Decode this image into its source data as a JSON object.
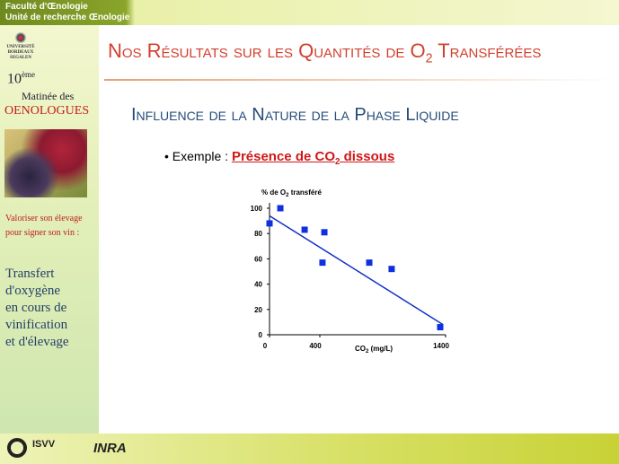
{
  "header": {
    "faculty": "Faculté d'Œnologie",
    "unit": "Unité de recherche Œnologie"
  },
  "sidebar": {
    "university": [
      "UNIVERSITÉ",
      "BORDEAUX",
      "SEGALEN"
    ],
    "edition_number": "10",
    "edition_suffix": "ème",
    "event": "Matinée des",
    "event_name": "OENOLOGUES",
    "tagline": [
      "Valoriser son élevage",
      "pour signer son vin :"
    ],
    "topic": [
      "Transfert",
      "d'oxygène",
      "en cours de",
      "vinification",
      "et d'élevage"
    ]
  },
  "slide": {
    "title": [
      "Nos Résultats sur les Quantités de O",
      "2",
      " Transférées"
    ],
    "subtitle": "Influence de la Nature de la Phase Liquide",
    "bullet": "• Exemple :",
    "example": [
      "Présence de CO",
      "2",
      " dissous"
    ]
  },
  "footer": {
    "logos": [
      "ISVV",
      "INRA"
    ]
  },
  "chart_data": {
    "type": "scatter",
    "y_label": [
      "% de O",
      "2",
      " transféré"
    ],
    "x_label": [
      "CO",
      "2",
      " (mg/L)"
    ],
    "x": [
      0,
      86,
      279,
      436,
      421,
      793,
      971,
      1357
    ],
    "series": [
      {
        "color": "#1030e0",
        "values": [
          88,
          100,
          83,
          81,
          57,
          57,
          52,
          6
        ]
      }
    ],
    "trendline": {
      "color": "#1030c8",
      "x": [
        0,
        1380
      ],
      "values": [
        94,
        8
      ]
    },
    "xlim": [
      0,
      1400
    ],
    "xticks": [
      0,
      400,
      1400
    ],
    "ylim": [
      0,
      100
    ],
    "yticks": [
      0,
      20,
      40,
      60,
      80,
      100
    ]
  }
}
